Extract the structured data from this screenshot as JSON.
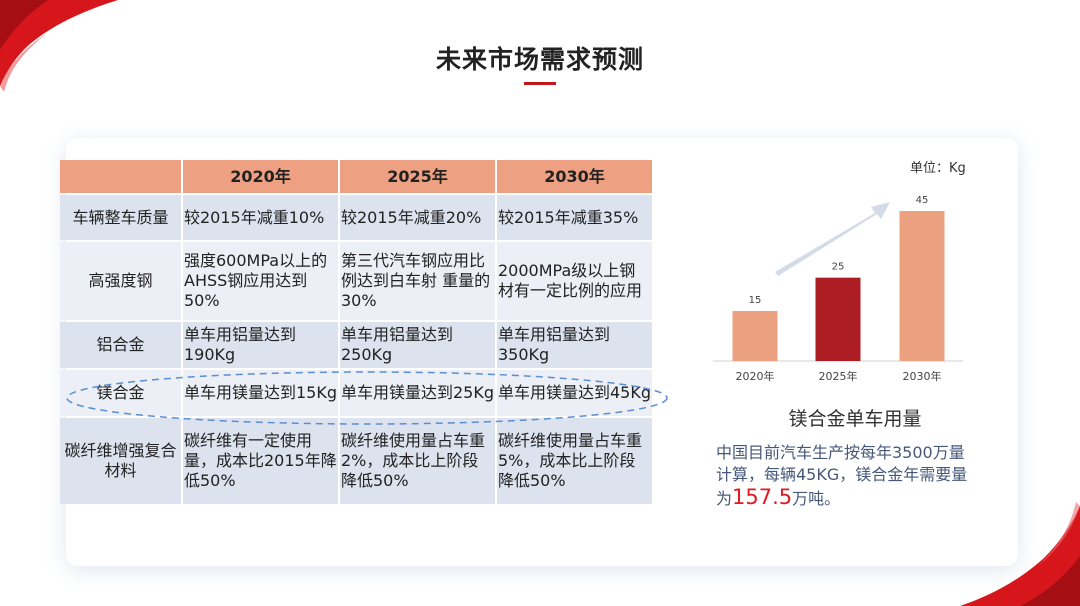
{
  "title": "未来市场需求预测",
  "table": {
    "headers": [
      "",
      "2020年",
      "2025年",
      "2030年"
    ],
    "rows": [
      {
        "label": "车辆整车质量",
        "cells": [
          "较2015年减重10%",
          "较2015年减重20%",
          "较2015年减重35%"
        ]
      },
      {
        "label": "高强度钢",
        "cells": [
          "强度600MPa以上的AHSS钢应用达到50%",
          "第三代汽车钢应用比例达到白车射 重量的30%",
          "2000MPa级以上钢材有一定比例的应用"
        ]
      },
      {
        "label": "铝合金",
        "cells": [
          "单车用铝量达到190Kg",
          "单车用铝量达到250Kg",
          "单车用铝量达到350Kg"
        ]
      },
      {
        "label": "镁合金",
        "cells": [
          "单车用镁量达到15Kg",
          "单车用镁量达到25Kg",
          "单车用镁量达到45Kg"
        ]
      },
      {
        "label": "碳纤维增强复合材料",
        "cells": [
          "碳纤维有一定使用量，成本比2015年降低50%",
          "碳纤维使用量占车重2%，成本比上阶段降低50%",
          "碳纤维使用量占车重5%，成本比上阶段降低50%"
        ]
      }
    ]
  },
  "chart_data": {
    "type": "bar",
    "title": "镁合金单车用量",
    "unit_label": "单位：Kg",
    "categories": [
      "2020年",
      "2025年",
      "2030年"
    ],
    "values": [
      15,
      25,
      45
    ],
    "ylim": [
      0,
      45
    ],
    "colors": [
      "#eba080",
      "#ac1e24",
      "#eba080"
    ],
    "arrow_color": "#d3dbe8"
  },
  "note": {
    "text_before": "中国目前汽车生产按每年3500万量计算，每辆45KG，镁合金年需要量为",
    "highlight": "157.5",
    "text_after": "万吨。"
  }
}
